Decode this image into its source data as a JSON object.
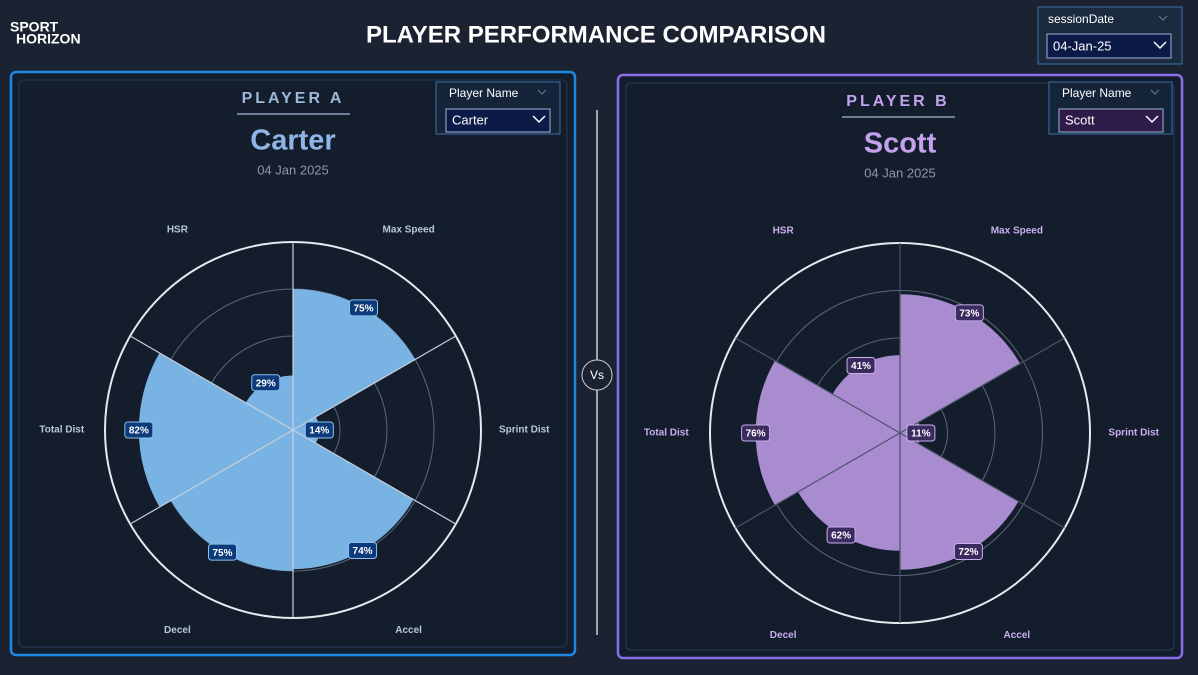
{
  "header": {
    "logo_top": "SPORT",
    "logo_bottom": "HORIZON",
    "title": "PLAYER PERFORMANCE COMPARISON"
  },
  "date_filter": {
    "label": "sessionDate",
    "value": "04-Jan-25"
  },
  "vs": "Vs",
  "chart_data": [
    {
      "type": "polar",
      "heading": "PLAYER A",
      "title": "Carter",
      "subtitle": "04 Jan 2025",
      "filter_label": "Player Name",
      "filter_value": "Carter",
      "categories": [
        "Max Speed",
        "Sprint Dist",
        "Accel",
        "Decel",
        "Total Dist",
        "HSR"
      ],
      "values": [
        75,
        14,
        74,
        75,
        82,
        29
      ],
      "value_labels": [
        "75%",
        "14%",
        "74%",
        "75%",
        "82%",
        "29%"
      ],
      "color": "#78b3e3",
      "rlim": [
        0,
        100
      ],
      "rticks": [
        25,
        50,
        75,
        100
      ]
    },
    {
      "type": "polar",
      "heading": "PLAYER B",
      "title": "Scott",
      "subtitle": "04 Jan 2025",
      "filter_label": "Player Name",
      "filter_value": "Scott",
      "categories": [
        "Max Speed",
        "Sprint Dist",
        "Accel",
        "Decel",
        "Total Dist",
        "HSR"
      ],
      "values": [
        73,
        11,
        72,
        62,
        76,
        41
      ],
      "value_labels": [
        "73%",
        "11%",
        "72%",
        "62%",
        "76%",
        "41%"
      ],
      "color": "#a98bd0",
      "rlim": [
        0,
        100
      ],
      "rticks": [
        25,
        50,
        75,
        100
      ]
    }
  ]
}
